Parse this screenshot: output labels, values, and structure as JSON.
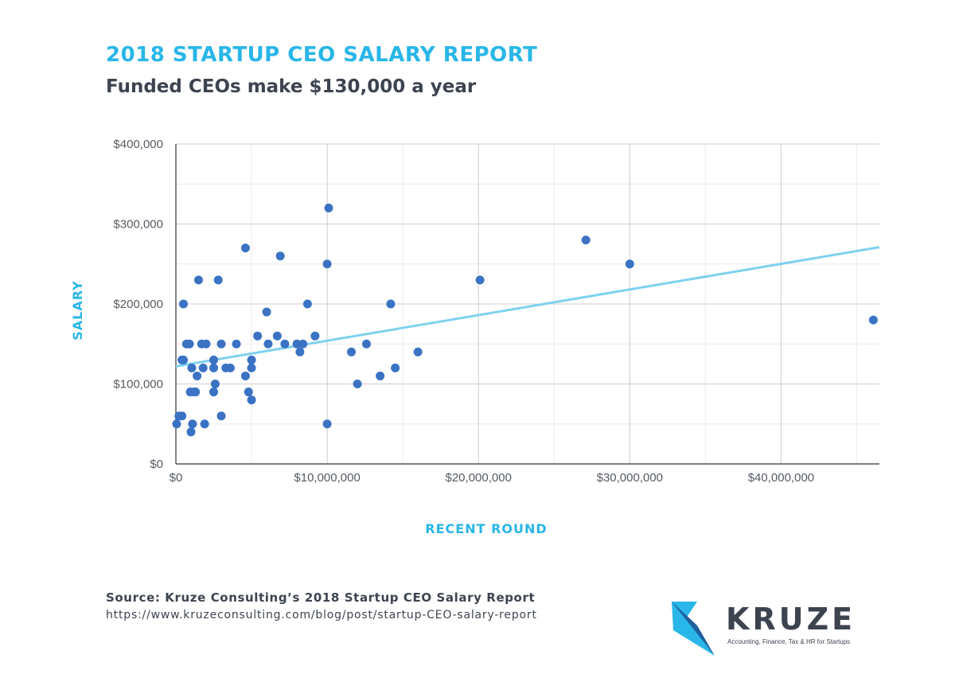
{
  "header": {
    "title": "2018 STARTUP CEO SALARY REPORT",
    "subtitle": "Funded CEOs make $130,000 a year"
  },
  "chart_data": {
    "type": "scatter",
    "xlabel": "RECENT ROUND",
    "ylabel": "SALARY",
    "xlim": [
      0,
      46500000
    ],
    "ylim": [
      0,
      400000
    ],
    "x_ticks": [
      0,
      10000000,
      20000000,
      30000000,
      40000000
    ],
    "x_tick_labels": [
      "$0",
      "$10,000,000",
      "$20,000,000",
      "$30,000,000",
      "$40,000,000"
    ],
    "y_ticks": [
      0,
      100000,
      200000,
      300000,
      400000
    ],
    "y_tick_labels": [
      "$0",
      "$100,000",
      "$200,000",
      "$300,000",
      "$400,000"
    ],
    "grid": true,
    "point_color": "#3a73c4",
    "trend_color": "#7fd1ef",
    "trendline": {
      "x": [
        0,
        46500000
      ],
      "y": [
        122000,
        271000
      ]
    },
    "points": [
      {
        "x": 50000,
        "y": 50000
      },
      {
        "x": 200000,
        "y": 60000
      },
      {
        "x": 400000,
        "y": 60000
      },
      {
        "x": 400000,
        "y": 130000
      },
      {
        "x": 500000,
        "y": 200000
      },
      {
        "x": 500000,
        "y": 130000
      },
      {
        "x": 700000,
        "y": 150000
      },
      {
        "x": 900000,
        "y": 150000
      },
      {
        "x": 950000,
        "y": 90000
      },
      {
        "x": 1000000,
        "y": 40000
      },
      {
        "x": 1050000,
        "y": 120000
      },
      {
        "x": 1100000,
        "y": 50000
      },
      {
        "x": 1200000,
        "y": 90000
      },
      {
        "x": 1300000,
        "y": 90000
      },
      {
        "x": 1400000,
        "y": 110000
      },
      {
        "x": 1500000,
        "y": 230000
      },
      {
        "x": 1700000,
        "y": 150000
      },
      {
        "x": 1800000,
        "y": 120000
      },
      {
        "x": 1900000,
        "y": 50000
      },
      {
        "x": 2000000,
        "y": 150000
      },
      {
        "x": 2500000,
        "y": 120000
      },
      {
        "x": 2500000,
        "y": 130000
      },
      {
        "x": 2500000,
        "y": 90000
      },
      {
        "x": 2600000,
        "y": 100000
      },
      {
        "x": 2800000,
        "y": 230000
      },
      {
        "x": 3000000,
        "y": 60000
      },
      {
        "x": 3000000,
        "y": 150000
      },
      {
        "x": 3300000,
        "y": 120000
      },
      {
        "x": 3600000,
        "y": 120000
      },
      {
        "x": 4000000,
        "y": 150000
      },
      {
        "x": 4600000,
        "y": 270000
      },
      {
        "x": 4600000,
        "y": 110000
      },
      {
        "x": 4800000,
        "y": 90000
      },
      {
        "x": 5000000,
        "y": 80000
      },
      {
        "x": 5000000,
        "y": 120000
      },
      {
        "x": 5000000,
        "y": 130000
      },
      {
        "x": 5400000,
        "y": 160000
      },
      {
        "x": 6000000,
        "y": 190000
      },
      {
        "x": 6100000,
        "y": 150000
      },
      {
        "x": 6700000,
        "y": 160000
      },
      {
        "x": 6900000,
        "y": 260000
      },
      {
        "x": 7200000,
        "y": 150000
      },
      {
        "x": 8000000,
        "y": 150000
      },
      {
        "x": 8200000,
        "y": 140000
      },
      {
        "x": 8400000,
        "y": 150000
      },
      {
        "x": 8700000,
        "y": 200000
      },
      {
        "x": 9200000,
        "y": 160000
      },
      {
        "x": 10000000,
        "y": 250000
      },
      {
        "x": 10000000,
        "y": 50000
      },
      {
        "x": 10100000,
        "y": 320000
      },
      {
        "x": 11600000,
        "y": 140000
      },
      {
        "x": 12000000,
        "y": 100000
      },
      {
        "x": 12600000,
        "y": 150000
      },
      {
        "x": 13500000,
        "y": 110000
      },
      {
        "x": 14200000,
        "y": 200000
      },
      {
        "x": 14500000,
        "y": 120000
      },
      {
        "x": 16000000,
        "y": 140000
      },
      {
        "x": 20100000,
        "y": 230000
      },
      {
        "x": 27100000,
        "y": 280000
      },
      {
        "x": 30000000,
        "y": 250000
      },
      {
        "x": 46100000,
        "y": 180000
      }
    ]
  },
  "footer": {
    "source": "Source: Kruze Consulting’s 2018 Startup CEO Salary Report",
    "url": "https://www.kruzeconsulting.com/blog/post/startup-CEO-salary-report"
  },
  "logo": {
    "wordmark": "KRUZE",
    "tagline": "Accounting, Finance, Tax & HR for Startups",
    "colors": [
      "#29b6e8",
      "#1f5f9e"
    ]
  }
}
